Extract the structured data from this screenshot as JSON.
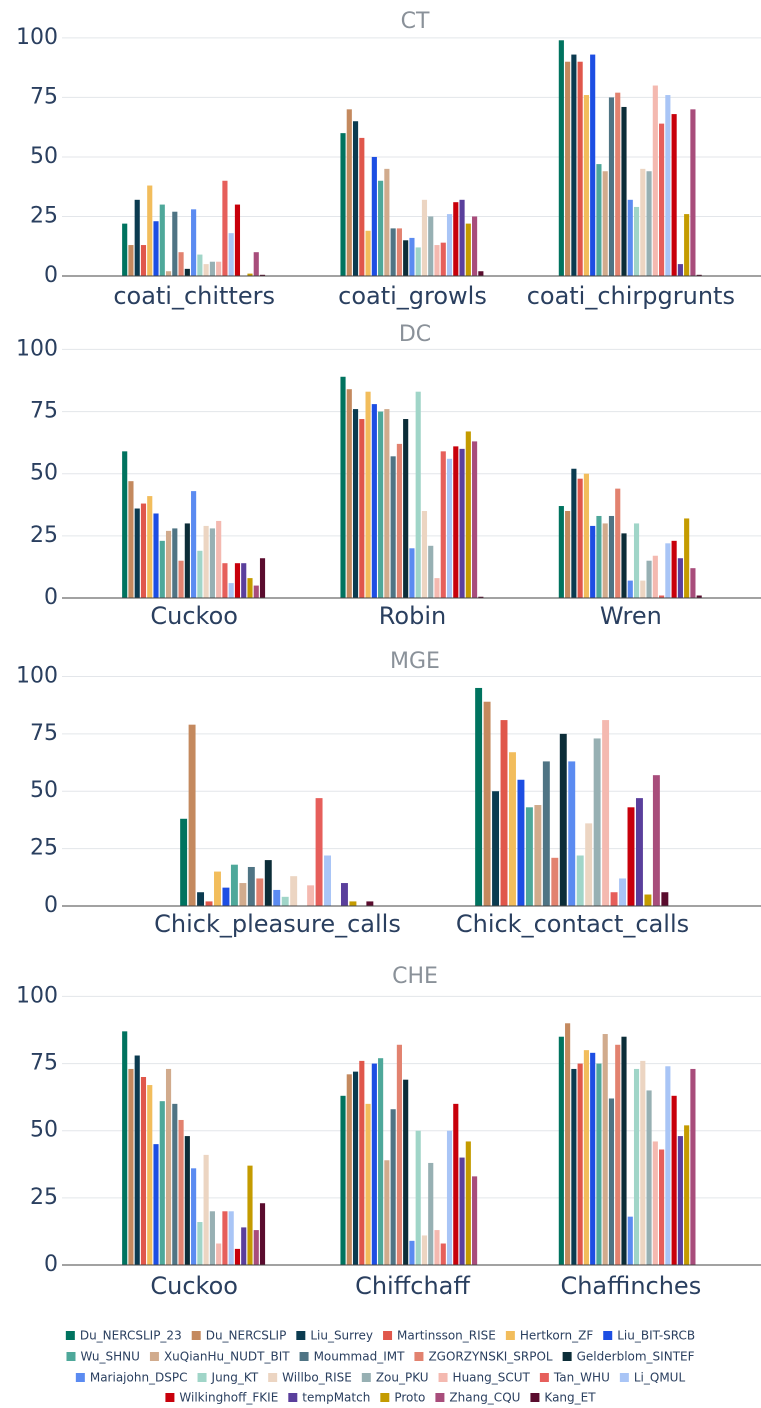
{
  "legend": [
    {
      "name": "Du_NERCSLIP_23",
      "color": "#00735f"
    },
    {
      "name": "Du_NERCSLIP",
      "color": "#c4895e"
    },
    {
      "name": "Liu_Surrey",
      "color": "#0b3b50"
    },
    {
      "name": "Martinsson_RISE",
      "color": "#e0574b"
    },
    {
      "name": "Hertkorn_ZF",
      "color": "#f2bd5c"
    },
    {
      "name": "Liu_BIT-SRCB",
      "color": "#1d4ee3"
    },
    {
      "name": "Wu_SHNU",
      "color": "#4ea89a"
    },
    {
      "name": "XuQianHu_NUDT_BIT",
      "color": "#d1ab8d"
    },
    {
      "name": "Moummad_IMT",
      "color": "#4f7484"
    },
    {
      "name": "ZGORZYNSKI_SRPOL",
      "color": "#e2826f"
    },
    {
      "name": "Gelderblom_SINTEF",
      "color": "#0c2d38"
    },
    {
      "name": "Mariajohn_DSPC",
      "color": "#5b8bf1"
    },
    {
      "name": "Jung_KT",
      "color": "#a0d5c8"
    },
    {
      "name": "Willbo_RISE",
      "color": "#ecd5c2"
    },
    {
      "name": "Zou_PKU",
      "color": "#97b0b3"
    },
    {
      "name": "Huang_SCUT",
      "color": "#f4b9b0"
    },
    {
      "name": "Tan_WHU",
      "color": "#e65f5b"
    },
    {
      "name": "Li_QMUL",
      "color": "#a9c5f6"
    },
    {
      "name": "Wilkinghoff_FKIE",
      "color": "#c8000b"
    },
    {
      "name": "tempMatch",
      "color": "#5a3f9c"
    },
    {
      "name": "Proto",
      "color": "#c49b00"
    },
    {
      "name": "Zhang_CQU",
      "color": "#a84d7b"
    },
    {
      "name": "Kang_ET",
      "color": "#5a0c2e"
    }
  ],
  "chart_data": [
    {
      "type": "bar",
      "title": "CT",
      "categories": [
        "coati_chitters",
        "coati_growls",
        "coati_chirpgrunts"
      ],
      "ylim": [
        0,
        105
      ],
      "yticks": [
        0,
        25,
        50,
        75,
        100
      ],
      "grid": true,
      "series": [
        {
          "values": [
            22,
            60,
            99
          ]
        },
        {
          "values": [
            13,
            70,
            90
          ]
        },
        {
          "values": [
            32,
            65,
            93
          ]
        },
        {
          "values": [
            13,
            58,
            90
          ]
        },
        {
          "values": [
            38,
            19,
            76
          ]
        },
        {
          "values": [
            23,
            50,
            93
          ]
        },
        {
          "values": [
            30,
            40,
            47
          ]
        },
        {
          "values": [
            2,
            45,
            44
          ]
        },
        {
          "values": [
            27,
            20,
            75
          ]
        },
        {
          "values": [
            10,
            20,
            77
          ]
        },
        {
          "values": [
            3,
            15,
            71
          ]
        },
        {
          "values": [
            28,
            16,
            32
          ]
        },
        {
          "values": [
            9,
            12,
            29
          ]
        },
        {
          "values": [
            5,
            32,
            45
          ]
        },
        {
          "values": [
            6,
            25,
            44
          ]
        },
        {
          "values": [
            6,
            13,
            80
          ]
        },
        {
          "values": [
            40,
            14,
            64
          ]
        },
        {
          "values": [
            18,
            26,
            76
          ]
        },
        {
          "values": [
            30,
            31,
            68
          ]
        },
        {
          "values": [
            0,
            32,
            5
          ]
        },
        {
          "values": [
            1,
            22,
            26
          ]
        },
        {
          "values": [
            10,
            25,
            70
          ]
        },
        {
          "values": [
            0.5,
            2,
            0.5
          ]
        }
      ]
    },
    {
      "type": "bar",
      "title": "DC",
      "categories": [
        "Cuckoo",
        "Robin",
        "Wren"
      ],
      "ylim": [
        0,
        105
      ],
      "yticks": [
        0,
        25,
        50,
        75,
        100
      ],
      "grid": true,
      "series": [
        {
          "values": [
            59,
            89,
            37
          ]
        },
        {
          "values": [
            47,
            84,
            35
          ]
        },
        {
          "values": [
            36,
            76,
            52
          ]
        },
        {
          "values": [
            38,
            72,
            48
          ]
        },
        {
          "values": [
            41,
            83,
            50
          ]
        },
        {
          "values": [
            34,
            78,
            29
          ]
        },
        {
          "values": [
            23,
            75,
            33
          ]
        },
        {
          "values": [
            27,
            76,
            30
          ]
        },
        {
          "values": [
            28,
            57,
            33
          ]
        },
        {
          "values": [
            15,
            62,
            44
          ]
        },
        {
          "values": [
            30,
            72,
            26
          ]
        },
        {
          "values": [
            43,
            20,
            7
          ]
        },
        {
          "values": [
            19,
            83,
            30
          ]
        },
        {
          "values": [
            29,
            35,
            7
          ]
        },
        {
          "values": [
            28,
            21,
            15
          ]
        },
        {
          "values": [
            31,
            8,
            17
          ]
        },
        {
          "values": [
            14,
            59,
            1
          ]
        },
        {
          "values": [
            6,
            56,
            22
          ]
        },
        {
          "values": [
            14,
            61,
            23
          ]
        },
        {
          "values": [
            14,
            60,
            16
          ]
        },
        {
          "values": [
            8,
            67,
            32
          ]
        },
        {
          "values": [
            5,
            63,
            12
          ]
        },
        {
          "values": [
            16,
            0.5,
            1
          ]
        }
      ]
    },
    {
      "type": "bar",
      "title": "MGE",
      "categories": [
        "Chick_pleasure_calls",
        "Chick_contact_calls"
      ],
      "ylim": [
        0,
        105
      ],
      "yticks": [
        0,
        25,
        50,
        75,
        100
      ],
      "grid": true,
      "series": [
        {
          "values": [
            38,
            95
          ]
        },
        {
          "values": [
            79,
            89
          ]
        },
        {
          "values": [
            6,
            50
          ]
        },
        {
          "values": [
            2,
            81
          ]
        },
        {
          "values": [
            15,
            67
          ]
        },
        {
          "values": [
            8,
            55
          ]
        },
        {
          "values": [
            18,
            43
          ]
        },
        {
          "values": [
            10,
            44
          ]
        },
        {
          "values": [
            17,
            63
          ]
        },
        {
          "values": [
            12,
            21
          ]
        },
        {
          "values": [
            20,
            75
          ]
        },
        {
          "values": [
            7,
            63
          ]
        },
        {
          "values": [
            4,
            22
          ]
        },
        {
          "values": [
            13,
            36
          ]
        },
        {
          "values": [
            0,
            73
          ]
        },
        {
          "values": [
            9,
            81
          ]
        },
        {
          "values": [
            47,
            6
          ]
        },
        {
          "values": [
            22,
            12
          ]
        },
        {
          "values": [
            0,
            43
          ]
        },
        {
          "values": [
            10,
            47
          ]
        },
        {
          "values": [
            2,
            5
          ]
        },
        {
          "values": [
            0,
            57
          ]
        },
        {
          "values": [
            2,
            6
          ]
        }
      ]
    },
    {
      "type": "bar",
      "title": "CHE",
      "categories": [
        "Cuckoo",
        "Chiffchaff",
        "Chaffinches"
      ],
      "ylim": [
        0,
        105
      ],
      "yticks": [
        0,
        25,
        50,
        75,
        100
      ],
      "grid": true,
      "series": [
        {
          "values": [
            87,
            63,
            85
          ]
        },
        {
          "values": [
            73,
            71,
            90
          ]
        },
        {
          "values": [
            78,
            72,
            73
          ]
        },
        {
          "values": [
            70,
            76,
            75
          ]
        },
        {
          "values": [
            67,
            60,
            80
          ]
        },
        {
          "values": [
            45,
            75,
            79
          ]
        },
        {
          "values": [
            61,
            77,
            75
          ]
        },
        {
          "values": [
            73,
            39,
            86
          ]
        },
        {
          "values": [
            60,
            58,
            62
          ]
        },
        {
          "values": [
            54,
            82,
            82
          ]
        },
        {
          "values": [
            48,
            69,
            85
          ]
        },
        {
          "values": [
            36,
            9,
            18
          ]
        },
        {
          "values": [
            16,
            50,
            73
          ]
        },
        {
          "values": [
            41,
            11,
            76
          ]
        },
        {
          "values": [
            20,
            38,
            65
          ]
        },
        {
          "values": [
            8,
            13,
            46
          ]
        },
        {
          "values": [
            20,
            8,
            43
          ]
        },
        {
          "values": [
            20,
            50,
            74
          ]
        },
        {
          "values": [
            6,
            60,
            63
          ]
        },
        {
          "values": [
            14,
            40,
            48
          ]
        },
        {
          "values": [
            37,
            46,
            52
          ]
        },
        {
          "values": [
            13,
            33,
            73
          ]
        },
        {
          "values": [
            23,
            0,
            0
          ]
        }
      ]
    }
  ]
}
